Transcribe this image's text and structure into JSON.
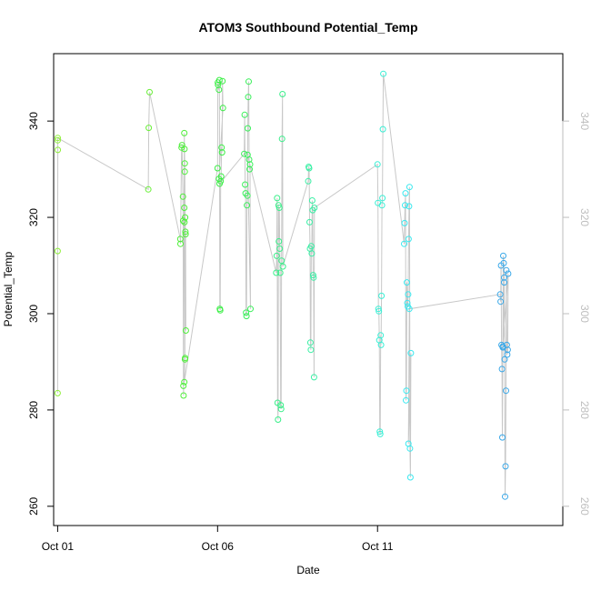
{
  "chart_data": {
    "type": "scatter",
    "title": "ATOM3 Southbound Potential_Temp",
    "xlabel": "Date",
    "ylabel": "Potential_Temp",
    "x_is_date": true,
    "xlim": [
      "2014-09-30T21:00",
      "2014-10-16T19:00"
    ],
    "ylim": [
      256,
      354
    ],
    "x_ticks": [
      {
        "value": "2014-10-01T00:00",
        "label": "Oct 01"
      },
      {
        "value": "2014-10-06T00:00",
        "label": "Oct 06"
      },
      {
        "value": "2014-10-11T00:00",
        "label": "Oct 11"
      }
    ],
    "y_ticks": [
      260,
      280,
      300,
      320,
      340
    ],
    "right_axis": {
      "ticks": [
        260,
        280,
        300,
        320,
        340
      ],
      "color": "#bebebe"
    },
    "connector_color": "#c8c8c8",
    "marker": "open-circle",
    "grid": false,
    "legend": "none",
    "series": [
      {
        "color": "#8fef3a",
        "points": [
          [
            "2014-10-01T00:00",
            283.5
          ],
          [
            "2014-10-01T00:00",
            313
          ],
          [
            "2014-10-01T00:10",
            334
          ],
          [
            "2014-10-01T00:05",
            336
          ],
          [
            "2014-10-01T00:05",
            336.5
          ]
        ]
      },
      {
        "color": "#6bef3a",
        "points": [
          [
            "2014-10-03T20:00",
            325.8
          ],
          [
            "2014-10-03T20:20",
            338.6
          ],
          [
            "2014-10-03T21:00",
            346
          ]
        ]
      },
      {
        "color": "#4fef3a",
        "points": [
          [
            "2014-10-04T20:00",
            315.5
          ],
          [
            "2014-10-04T20:10",
            314.5
          ],
          [
            "2014-10-04T21:00",
            334.5
          ],
          [
            "2014-10-04T21:20",
            335
          ],
          [
            "2014-10-04T22:00",
            324.3
          ],
          [
            "2014-10-04T22:10",
            319.3
          ],
          [
            "2014-10-04T22:20",
            285
          ],
          [
            "2014-10-04T22:30",
            283
          ],
          [
            "2014-10-04T23:00",
            337.5
          ],
          [
            "2014-10-04T23:10",
            334.2
          ],
          [
            "2014-10-04T23:20",
            331.2
          ],
          [
            "2014-10-04T23:40",
            320
          ],
          [
            "2014-10-04T23:50",
            317
          ],
          [
            "2014-10-05T00:00",
            316.5
          ],
          [
            "2014-10-05T00:10",
            296.5
          ],
          [
            "2014-10-04T23:00",
            322
          ],
          [
            "2014-10-04T23:10",
            319
          ],
          [
            "2014-10-04T23:20",
            329.5
          ],
          [
            "2014-10-04T23:30",
            290.5
          ],
          [
            "2014-10-04T23:40",
            290.8
          ],
          [
            "2014-10-04T23:00",
            285.8
          ]
        ]
      },
      {
        "color": "#3aef45",
        "points": [
          [
            "2014-10-06T00:00",
            330.2
          ],
          [
            "2014-10-06T00:10",
            348
          ],
          [
            "2014-10-06T00:20",
            347.5
          ],
          [
            "2014-10-06T01:00",
            346.5
          ],
          [
            "2014-10-06T01:20",
            348.5
          ],
          [
            "2014-10-06T01:40",
            301
          ],
          [
            "2014-10-06T02:00",
            300.7
          ],
          [
            "2014-10-06T02:20",
            327.5
          ],
          [
            "2014-10-06T02:40",
            328.5
          ],
          [
            "2014-10-06T03:00",
            334.5
          ],
          [
            "2014-10-06T03:20",
            333.5
          ],
          [
            "2014-10-06T03:40",
            348.3
          ],
          [
            "2014-10-06T04:00",
            342.7
          ],
          [
            "2014-10-06T01:00",
            328
          ],
          [
            "2014-10-06T01:30",
            327
          ]
        ]
      },
      {
        "color": "#3aef5a",
        "points": [
          [
            "2014-10-06T20:00",
            333.2
          ],
          [
            "2014-10-06T20:20",
            341.3
          ],
          [
            "2014-10-06T20:40",
            326.8
          ],
          [
            "2014-10-06T21:00",
            325
          ],
          [
            "2014-10-06T21:20",
            300.2
          ],
          [
            "2014-10-06T21:40",
            299.5
          ],
          [
            "2014-10-06T22:00",
            322.5
          ],
          [
            "2014-10-06T22:20",
            324.5
          ],
          [
            "2014-10-06T22:40",
            338.5
          ],
          [
            "2014-10-06T23:00",
            345
          ],
          [
            "2014-10-06T23:20",
            348.2
          ],
          [
            "2014-10-06T23:40",
            332
          ],
          [
            "2014-10-07T00:00",
            330
          ],
          [
            "2014-10-07T00:20",
            331
          ],
          [
            "2014-10-07T00:40",
            301
          ],
          [
            "2014-10-06T22:30",
            333
          ]
        ]
      },
      {
        "color": "#3aef8a",
        "points": [
          [
            "2014-10-07T20:00",
            308.5
          ],
          [
            "2014-10-07T20:20",
            312
          ],
          [
            "2014-10-07T20:40",
            324
          ],
          [
            "2014-10-07T21:00",
            281.5
          ],
          [
            "2014-10-07T21:20",
            278
          ],
          [
            "2014-10-07T21:40",
            322.5
          ],
          [
            "2014-10-07T22:00",
            315
          ],
          [
            "2014-10-07T22:20",
            322
          ],
          [
            "2014-10-07T22:40",
            313.5
          ],
          [
            "2014-10-07T23:00",
            308.5
          ],
          [
            "2014-10-07T23:20",
            281
          ],
          [
            "2014-10-07T23:40",
            280.2
          ],
          [
            "2014-10-08T00:00",
            311
          ],
          [
            "2014-10-08T00:20",
            336.3
          ],
          [
            "2014-10-08T00:40",
            345.6
          ],
          [
            "2014-10-08T01:00",
            309.8
          ]
        ]
      },
      {
        "color": "#3aefa5",
        "points": [
          [
            "2014-10-08T20:00",
            327.5
          ],
          [
            "2014-10-08T20:20",
            330.5
          ],
          [
            "2014-10-08T20:40",
            330.2
          ],
          [
            "2014-10-08T21:00",
            319
          ],
          [
            "2014-10-08T21:20",
            313.5
          ],
          [
            "2014-10-08T21:40",
            294
          ],
          [
            "2014-10-08T22:00",
            292.5
          ],
          [
            "2014-10-08T22:20",
            314
          ],
          [
            "2014-10-08T22:40",
            312.5
          ],
          [
            "2014-10-08T23:00",
            323.5
          ],
          [
            "2014-10-08T23:20",
            321.5
          ],
          [
            "2014-10-08T23:40",
            308
          ],
          [
            "2014-10-09T00:00",
            307.5
          ],
          [
            "2014-10-09T00:20",
            286.8
          ],
          [
            "2014-10-09T00:40",
            322
          ]
        ]
      },
      {
        "color": "#3aefd5",
        "points": [
          [
            "2014-10-11T00:00",
            331
          ],
          [
            "2014-10-11T00:20",
            323
          ],
          [
            "2014-10-11T00:40",
            301
          ],
          [
            "2014-10-11T01:00",
            300.5
          ],
          [
            "2014-10-11T01:20",
            294.5
          ],
          [
            "2014-10-11T01:40",
            275.5
          ],
          [
            "2014-10-11T02:00",
            275
          ],
          [
            "2014-10-11T02:20",
            295.5
          ],
          [
            "2014-10-11T02:40",
            293.5
          ],
          [
            "2014-10-11T03:00",
            303.7
          ],
          [
            "2014-10-11T03:20",
            322.5
          ],
          [
            "2014-10-11T03:40",
            324
          ],
          [
            "2014-10-11T04:00",
            338.3
          ],
          [
            "2014-10-11T04:20",
            349.8
          ]
        ]
      },
      {
        "color": "#3ae8ef",
        "points": [
          [
            "2014-10-11T20:00",
            314.5
          ],
          [
            "2014-10-11T20:20",
            318.8
          ],
          [
            "2014-10-11T20:40",
            322.5
          ],
          [
            "2014-10-11T21:00",
            325
          ],
          [
            "2014-10-11T21:20",
            282
          ],
          [
            "2014-10-11T21:40",
            284
          ],
          [
            "2014-10-11T22:00",
            306.5
          ],
          [
            "2014-10-11T22:20",
            302.2
          ],
          [
            "2014-10-11T22:40",
            301.5
          ],
          [
            "2014-10-11T23:00",
            304
          ],
          [
            "2014-10-11T23:20",
            315.5
          ],
          [
            "2014-10-11T23:40",
            322.3
          ],
          [
            "2014-10-12T00:00",
            326.3
          ],
          [
            "2014-10-12T00:20",
            272
          ],
          [
            "2014-10-12T00:40",
            266
          ],
          [
            "2014-10-12T01:00",
            291.8
          ],
          [
            "2014-10-11T23:10",
            273
          ],
          [
            "2014-10-11T23:50",
            301
          ]
        ]
      },
      {
        "color": "#3aa8e8",
        "points": [
          [
            "2014-10-14T20:00",
            304
          ],
          [
            "2014-10-14T20:20",
            302.5
          ],
          [
            "2014-10-14T20:40",
            310
          ],
          [
            "2014-10-14T21:00",
            293.5
          ],
          [
            "2014-10-14T21:20",
            288.5
          ],
          [
            "2014-10-14T21:40",
            274.3
          ],
          [
            "2014-10-14T22:00",
            293
          ],
          [
            "2014-10-14T22:20",
            312
          ],
          [
            "2014-10-14T22:40",
            310.5
          ],
          [
            "2014-10-14T23:00",
            307.5
          ],
          [
            "2014-10-14T23:20",
            290.5
          ],
          [
            "2014-10-14T23:40",
            262
          ],
          [
            "2014-10-15T00:00",
            268.3
          ],
          [
            "2014-10-15T00:20",
            284
          ],
          [
            "2014-10-15T00:40",
            309
          ],
          [
            "2014-10-15T01:00",
            293.5
          ],
          [
            "2014-10-15T01:20",
            291.5
          ],
          [
            "2014-10-15T01:40",
            292.5
          ],
          [
            "2014-10-15T02:00",
            308.3
          ],
          [
            "2014-10-14T22:00",
            293.2
          ],
          [
            "2014-10-14T23:00",
            306.5
          ]
        ]
      }
    ]
  }
}
